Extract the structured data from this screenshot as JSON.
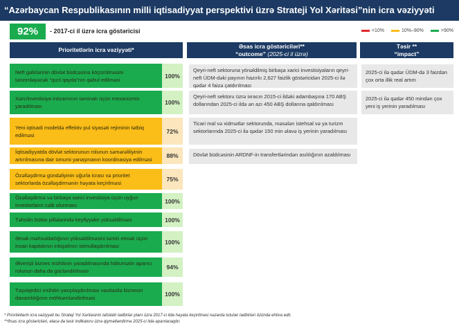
{
  "title": "“Azərbaycan Respublikasının milli iqtisadiyyat perspektivi üzrə Strateji Yol Xəritəsi”nin icra vəziyyəti",
  "kpi": {
    "value": "92%",
    "label": "- 2017-ci il üzrə icra göstəricisi"
  },
  "legend": [
    {
      "label": "<10%",
      "color": "#e3262a"
    },
    {
      "label": "10%–90%",
      "color": "#fbbd17"
    },
    {
      "label": ">90%",
      "color": "#1aab4f"
    }
  ],
  "headers": {
    "col1": "Prioritetlərin icra vəziyyəti*",
    "col2_line1": "Əsas icra göstəriciləri**",
    "col2_line2a": "“outcome”",
    "col2_line2b": "(2025-ci il üzrə)",
    "col3_line1": "Təsir **",
    "col3_line2": "“impact”"
  },
  "priorities": [
    {
      "text": "Neft gəlirlərinin dövlət büdcəsinə köçürülməsini tənzimləyəcək “qızıl qayda”nın qəbul edilməsi",
      "percent": "100%",
      "status": "green"
    },
    {
      "text": "Xərc/investisiya intizamının təminatı üçün mexanizmin yaradılması",
      "percent": "100%",
      "status": "green"
    },
    {
      "text": "Yeni iqtisadi modeldə effektiv pul siyasəti rejiminin tətbiq edilməsi",
      "percent": "72%",
      "status": "orange"
    },
    {
      "text": "İqtisadiyyatda dövlət sektorunun rolunun səmərəliliyinin artırılmasına dair ümumi yanaşmanın koordinasiya edilməsi",
      "percent": "88%",
      "status": "orange"
    },
    {
      "text": "Özəlləşdirmə gündəliyinin uğurla icrası və prioritet sektorlarda özəlləşdirmənin həyata keçirilməsi",
      "percent": "75%",
      "status": "orange"
    },
    {
      "text": "Özəlləşdirmə və birbaşa xarici investisiya üçün uyğun investorların cəlb olunması",
      "percent": "100%",
      "status": "green"
    },
    {
      "text": "Təhsilin bütün pillələrində keyfiyyətin yüksəldilməsi",
      "percent": "100%",
      "status": "green"
    },
    {
      "text": "Əmək məhsuldarlığının yüksəldilməsini təmin etmək üçün insan kapitalının inkişafının stimullaşdırılması",
      "percent": "100%",
      "status": "green"
    },
    {
      "text": "Əlverişli biznes mühitinin yaradılmasında hökumətin aparıcı rolunun daha da gücləndirilməsi",
      "percent": "94%",
      "status": "green"
    },
    {
      "text": "Təşviqedici mühitin yaxşılaşdırılması vasitəsilə biznesin davamlılığının möhkəmləndirilməsi",
      "percent": "100%",
      "status": "green"
    }
  ],
  "outcomes": [
    "Qeyri-neft sektoruna yönəldilmiş birbaşa xarici investisiyaların qeyri-neft ÜDM-dəki payının hazırkı 2,627 faizlik göstəricidən 2025-ci ilə qədər 4 faizə çatdırılması",
    "Qeyri-neft sektoru üzrə ixracın 2015-ci ildəki adambaşına 170 ABŞ dollarından 2025-ci ildə ən azı 450 ABŞ dollarına qaldırılması",
    "Ticari mal və xidmətlər sektorunda, məsələn istehsal və ya turizm sektorlarında 2025-ci ilə qədər 150 min əlavə iş yerinin yaradılması",
    "Dövlət büdcəsinin ARDNF-in transfertlərindən asılılığının azaldılması"
  ],
  "impacts": [
    "2025-ci ilə qədər ÜDM-də 3 faizdən çox orta illik real artım",
    "2025-ci ilə qədər 450 mindən çox yeni iş yerinin yaradılması"
  ],
  "notes": [
    "* Prioritetlərin icra vəziyyəti bu Strateji Yol Xəritəsinin təfsilatlı tədbirlər planı üzrə 2017-ci ildə həyata keçirilməsi nəzərdə tutulan tədbirləri özündə ehtiva edir.",
    "**Əsas icra göstəriciləri, eləcə də təsir indikatoru üzrə qiymətləndirmə 2025-ci ildə aparılacaqdır."
  ]
}
